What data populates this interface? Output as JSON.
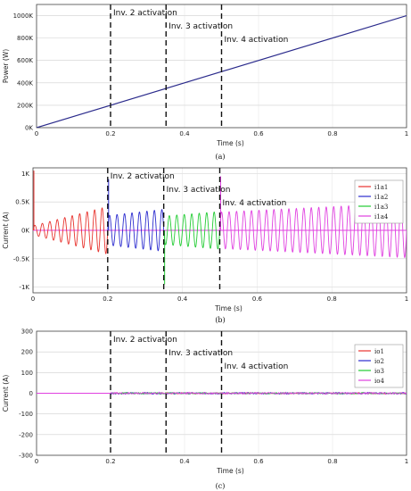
{
  "chart_data": [
    {
      "type": "line",
      "panel": "(a)",
      "ylabel": "Power (W)",
      "xlabel": "Time (s)",
      "xlim": [
        0,
        1
      ],
      "ylim": [
        0,
        1100000
      ],
      "xticks": [
        0,
        0.2,
        0.4,
        0.6,
        0.8,
        1
      ],
      "xtick_labels": [
        "0",
        "0.2",
        "0.4",
        "0.6",
        "0.8",
        "1"
      ],
      "yticks": [
        0,
        200000,
        400000,
        600000,
        800000,
        1000000
      ],
      "ytick_labels": [
        "0K",
        "200K",
        "400K",
        "600K",
        "800K",
        "1000K"
      ],
      "series": [
        {
          "x": [
            0,
            1
          ],
          "y": [
            0,
            1000000
          ],
          "color": "#2b2b8c"
        }
      ],
      "annotations": [
        {
          "x": 0.2,
          "text": "Inv. 2 activation"
        },
        {
          "x": 0.35,
          "text": "Inv. 3 activation"
        },
        {
          "x": 0.5,
          "text": "Inv. 4 activation"
        }
      ],
      "grid": true
    },
    {
      "type": "line",
      "panel": "(b)",
      "ylabel": "Current (A)",
      "xlabel": "Time (s)",
      "xlim": [
        0,
        1
      ],
      "ylim": [
        -1100,
        1100
      ],
      "xticks": [
        0,
        0.2,
        0.4,
        0.6,
        0.8,
        1
      ],
      "xtick_labels": [
        "0",
        "0.2",
        "0.4",
        "0.6",
        "0.8",
        "1"
      ],
      "yticks": [
        1000,
        500,
        0,
        -500,
        -1000
      ],
      "ytick_labels": [
        "1K",
        "0.5K",
        "0K",
        "-0.5K",
        "-1K"
      ],
      "series": [
        {
          "name": "i1a1",
          "color": "#e8332e",
          "t_start": 0.0,
          "t_end": 0.2,
          "amp_start": 80,
          "amp_end": 420,
          "freq_hz": 50
        },
        {
          "name": "i1a2",
          "color": "#2c2ccf",
          "t_start": 0.2,
          "t_end": 0.35,
          "amp_start": 260,
          "amp_end": 370,
          "freq_hz": 50
        },
        {
          "name": "i1a3",
          "color": "#22cc33",
          "t_start": 0.35,
          "t_end": 0.5,
          "amp_start": 250,
          "amp_end": 330,
          "freq_hz": 50
        },
        {
          "name": "i1a4",
          "color": "#e040e0",
          "t_start": 0.5,
          "t_end": 1.0,
          "amp_start": 320,
          "amp_end": 480,
          "freq_hz": 50
        }
      ],
      "annotations": [
        {
          "x": 0.2,
          "text": "Inv. 2 activation"
        },
        {
          "x": 0.35,
          "text": "Inv. 3 activation"
        },
        {
          "x": 0.5,
          "text": "Inv. 4 activation"
        }
      ],
      "legend_position": "right",
      "grid": true
    },
    {
      "type": "line",
      "panel": "(c)",
      "ylabel": "Current (A)",
      "xlabel": "Time (s)",
      "xlim": [
        0,
        1
      ],
      "ylim": [
        -300,
        300
      ],
      "xticks": [
        0,
        0.2,
        0.4,
        0.6,
        0.8,
        1
      ],
      "xtick_labels": [
        "0",
        "0.2",
        "0.4",
        "0.6",
        "0.8",
        "1"
      ],
      "yticks": [
        300,
        200,
        100,
        0,
        -100,
        -200,
        -300
      ],
      "ytick_labels": [
        "300",
        "200",
        "100",
        "0",
        "-100",
        "-200",
        "-300"
      ],
      "series": [
        {
          "name": "io1",
          "color": "#e8332e",
          "level": 0,
          "noise_amp": 3
        },
        {
          "name": "io2",
          "color": "#2c2ccf",
          "level": 0,
          "noise_amp": 4
        },
        {
          "name": "io3",
          "color": "#22cc33",
          "level": 0,
          "noise_amp": 3
        },
        {
          "name": "io4",
          "color": "#e040e0",
          "level": 0,
          "noise_amp": 4
        }
      ],
      "annotations": [
        {
          "x": 0.2,
          "text": "Inv. 2 activation"
        },
        {
          "x": 0.35,
          "text": "Inv. 3 activation"
        },
        {
          "x": 0.5,
          "text": "Inv. 4 activation"
        }
      ],
      "legend_position": "right",
      "grid": true
    }
  ]
}
